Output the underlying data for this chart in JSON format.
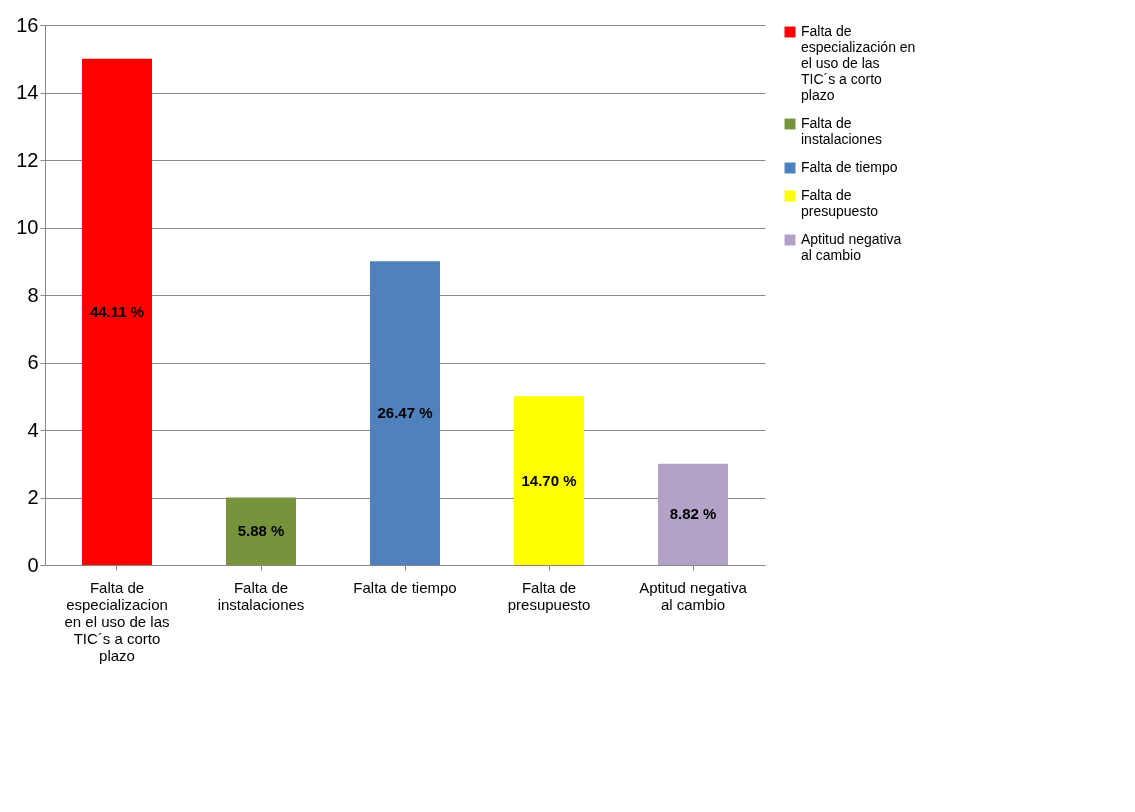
{
  "chart_data": {
    "type": "bar",
    "categories": [
      "Falta de especializacion en el  uso de las TIC´s a corto plazo",
      "Falta de instalaciones",
      "Falta de tiempo",
      "Falta de presupuesto",
      "Aptitud negativa al cambio"
    ],
    "series": [
      {
        "name": "Falta de especialización en el uso de las TIC´s a corto plazo",
        "color": "#ff0000",
        "values": [
          15,
          null,
          null,
          null,
          null
        ]
      },
      {
        "name": "Falta de instalaciones",
        "color": "#77933c",
        "values": [
          null,
          2,
          null,
          null,
          null
        ]
      },
      {
        "name": "Falta de tiempo",
        "color": "#4f81bd",
        "values": [
          null,
          null,
          9,
          null,
          null
        ]
      },
      {
        "name": "Falta de presupuesto",
        "color": "#ffff00",
        "values": [
          null,
          null,
          null,
          5,
          null
        ]
      },
      {
        "name": "Aptitud negativa al cambio",
        "color": "#b3a2c7",
        "values": [
          null,
          null,
          null,
          null,
          3
        ]
      }
    ],
    "annotations": [
      "44.11 %",
      "5.88 %",
      "26.47 %",
      "14.70 %",
      "8.82 %"
    ],
    "ylim": [
      0,
      16
    ],
    "yticks": [
      0,
      2,
      4,
      6,
      8,
      10,
      12,
      14,
      16
    ],
    "grid": "y",
    "legend": "right"
  }
}
